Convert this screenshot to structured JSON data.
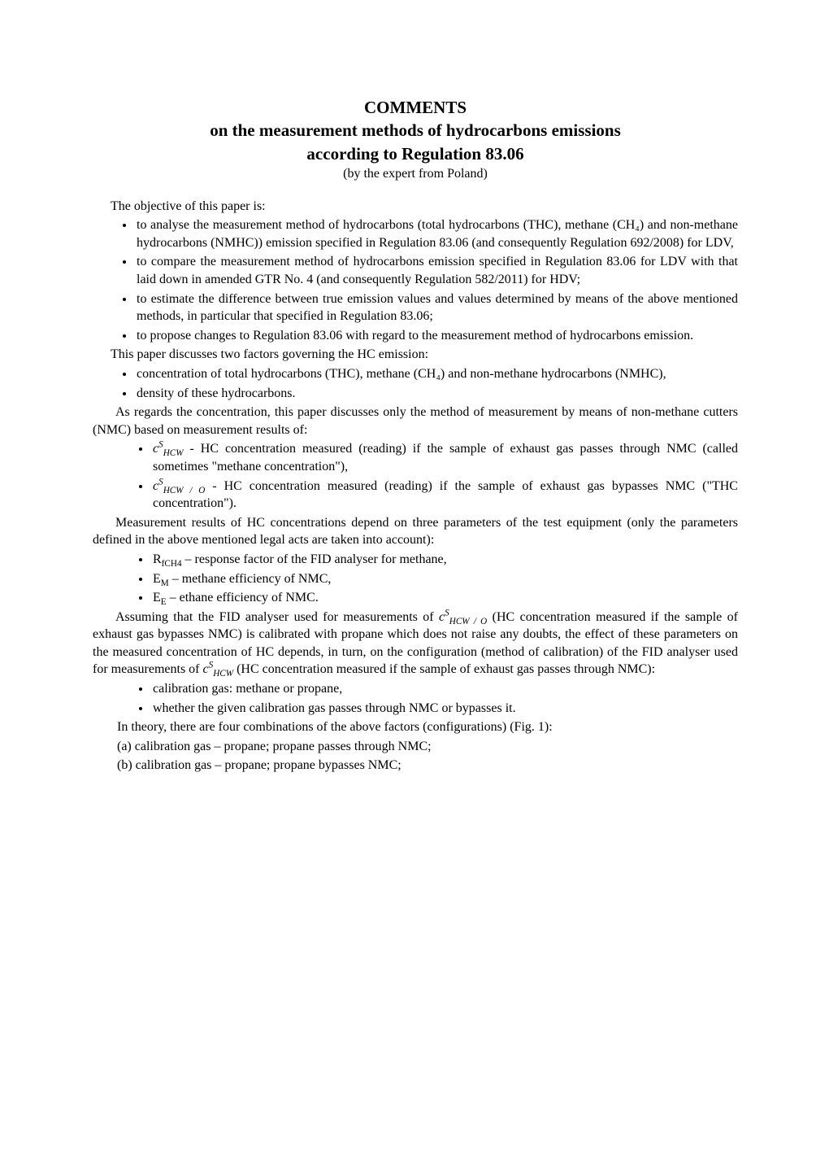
{
  "title": {
    "main": "COMMENTS",
    "line2": "on the measurement methods of hydrocarbons emissions",
    "line3": "according to Regulation 83.06",
    "byline": "(by the expert from Poland)"
  },
  "intro": "The objective of this paper is:",
  "objectives": [
    "to analyse the measurement method of hydrocarbons (total hydrocarbons (THC), methane (CH₄) and non-methane hydrocarbons (NMHC)) emission specified in Regulation 83.06 (and consequently Regulation 692/2008) for LDV,",
    "to compare the measurement method of hydrocarbons emission specified in Regulation 83.06 for LDV with that laid down in amended GTR No. 4 (and consequently Regulation 582/2011) for HDV;",
    "to estimate the difference between true emission values and values determined by means of the  above mentioned methods, in particular that specified in Regulation 83.06;",
    "to propose changes to Regulation 83.06 with regard to the measurement method of hydrocarbons emission."
  ],
  "factors_intro": "This paper discusses two factors governing the HC emission:",
  "factors": [
    "concentration of total hydrocarbons (THC), methane (CH₄) and non-methane hydrocarbons (NMHC),",
    "density of these hydrocarbons."
  ],
  "concentration_para": "As regards the concentration, this paper discusses only the method of measurement by means of non-methane cutters (NMC) based on measurement results of:",
  "concentration_items": {
    "item1": {
      "symbol_base": "c",
      "symbol_sup": "S",
      "symbol_sub": "HCW",
      "text": " - HC concentration measured (reading) if the sample of exhaust gas passes through NMC (called sometimes \"methane concentration\"),"
    },
    "item2": {
      "symbol_base": "c",
      "symbol_sup": "S",
      "symbol_sub": "HCW / O",
      "text": " - HC concentration measured (reading) if the sample of exhaust gas bypasses NMC (\"THC concentration\")."
    }
  },
  "parameters_para": "Measurement results of HC concentrations depend on three parameters of the test equipment (only the parameters defined in the above mentioned legal acts are taken into account):",
  "parameters": {
    "p1": {
      "sym": "R",
      "sub": "fCH4",
      "text": " – response factor of the FID analyser for methane,"
    },
    "p2": {
      "sym": "E",
      "sub": "M",
      "text": " – methane efficiency of NMC,"
    },
    "p3": {
      "sym": "E",
      "sub": "E",
      "text": " – ethane efficiency of NMC."
    }
  },
  "assuming_para": {
    "before": "Assuming that the FID analyser used for measurements of ",
    "sym1_base": "c",
    "sym1_sup": "S",
    "sym1_sub": "HCW / O",
    "middle": " (HC concentration measured if the sample of exhaust gas bypasses NMC) is calibrated with propane which does not raise any doubts, the effect of these parameters on the measured concentration of HC depends, in turn, on the configuration (method of calibration) of the FID analyser used for measurements of ",
    "sym2_base": "c",
    "sym2_sup": "S",
    "sym2_sub": "HCW",
    "after": " (HC concentration measured if the sample of exhaust gas passes through NMC):"
  },
  "config_items": [
    "calibration gas: methane or propane,",
    "whether the given calibration gas passes through NMC or bypasses it."
  ],
  "theory_line": "In theory, there are four combinations of the above factors (configurations) (Fig. 1):",
  "letter_items": [
    "(a) calibration gas – propane; propane passes through NMC;",
    "(b) calibration gas – propane; propane bypasses NMC;"
  ]
}
